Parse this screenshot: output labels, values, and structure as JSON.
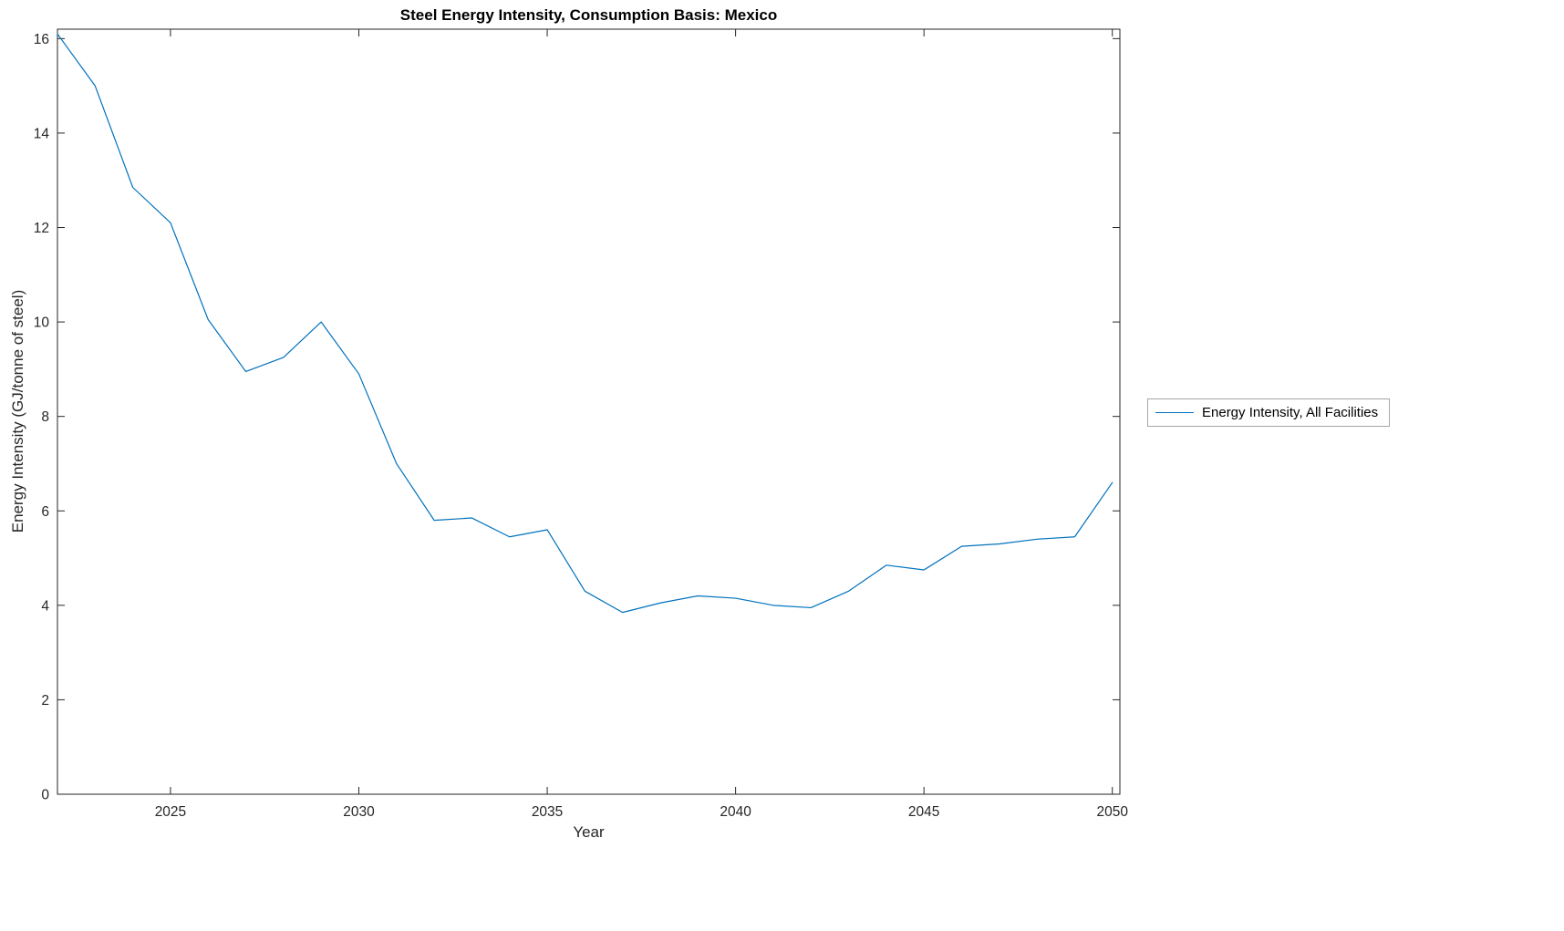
{
  "chart_data": {
    "type": "line",
    "title": "Steel Energy Intensity, Consumption Basis: Mexico",
    "xlabel": "Year",
    "ylabel": "Energy Intensity (GJ/tonne of steel)",
    "xlim": [
      2022,
      2050.2
    ],
    "ylim": [
      0,
      16.2
    ],
    "x_ticks": [
      2025,
      2030,
      2035,
      2040,
      2045,
      2050
    ],
    "y_ticks": [
      0,
      2,
      4,
      6,
      8,
      10,
      12,
      14,
      16
    ],
    "grid": false,
    "line_color": "#0072BD",
    "axis_color": "#262626",
    "legend": {
      "position": "right-outside",
      "entries": [
        "Energy Intensity, All Facilities"
      ]
    },
    "series": [
      {
        "name": "Energy Intensity, All Facilities",
        "x": [
          2022,
          2023,
          2024,
          2025,
          2026,
          2027,
          2028,
          2029,
          2030,
          2031,
          2032,
          2033,
          2034,
          2035,
          2036,
          2037,
          2038,
          2039,
          2040,
          2041,
          2042,
          2043,
          2044,
          2045,
          2046,
          2047,
          2048,
          2049,
          2050
        ],
        "values": [
          16.1,
          15.0,
          12.85,
          12.1,
          10.05,
          8.95,
          9.25,
          10.0,
          8.9,
          7.0,
          5.8,
          5.85,
          5.45,
          5.6,
          4.3,
          3.85,
          4.05,
          4.2,
          4.15,
          4.0,
          3.95,
          4.3,
          4.85,
          4.75,
          5.25,
          5.3,
          5.4,
          5.45,
          6.6
        ]
      }
    ]
  }
}
